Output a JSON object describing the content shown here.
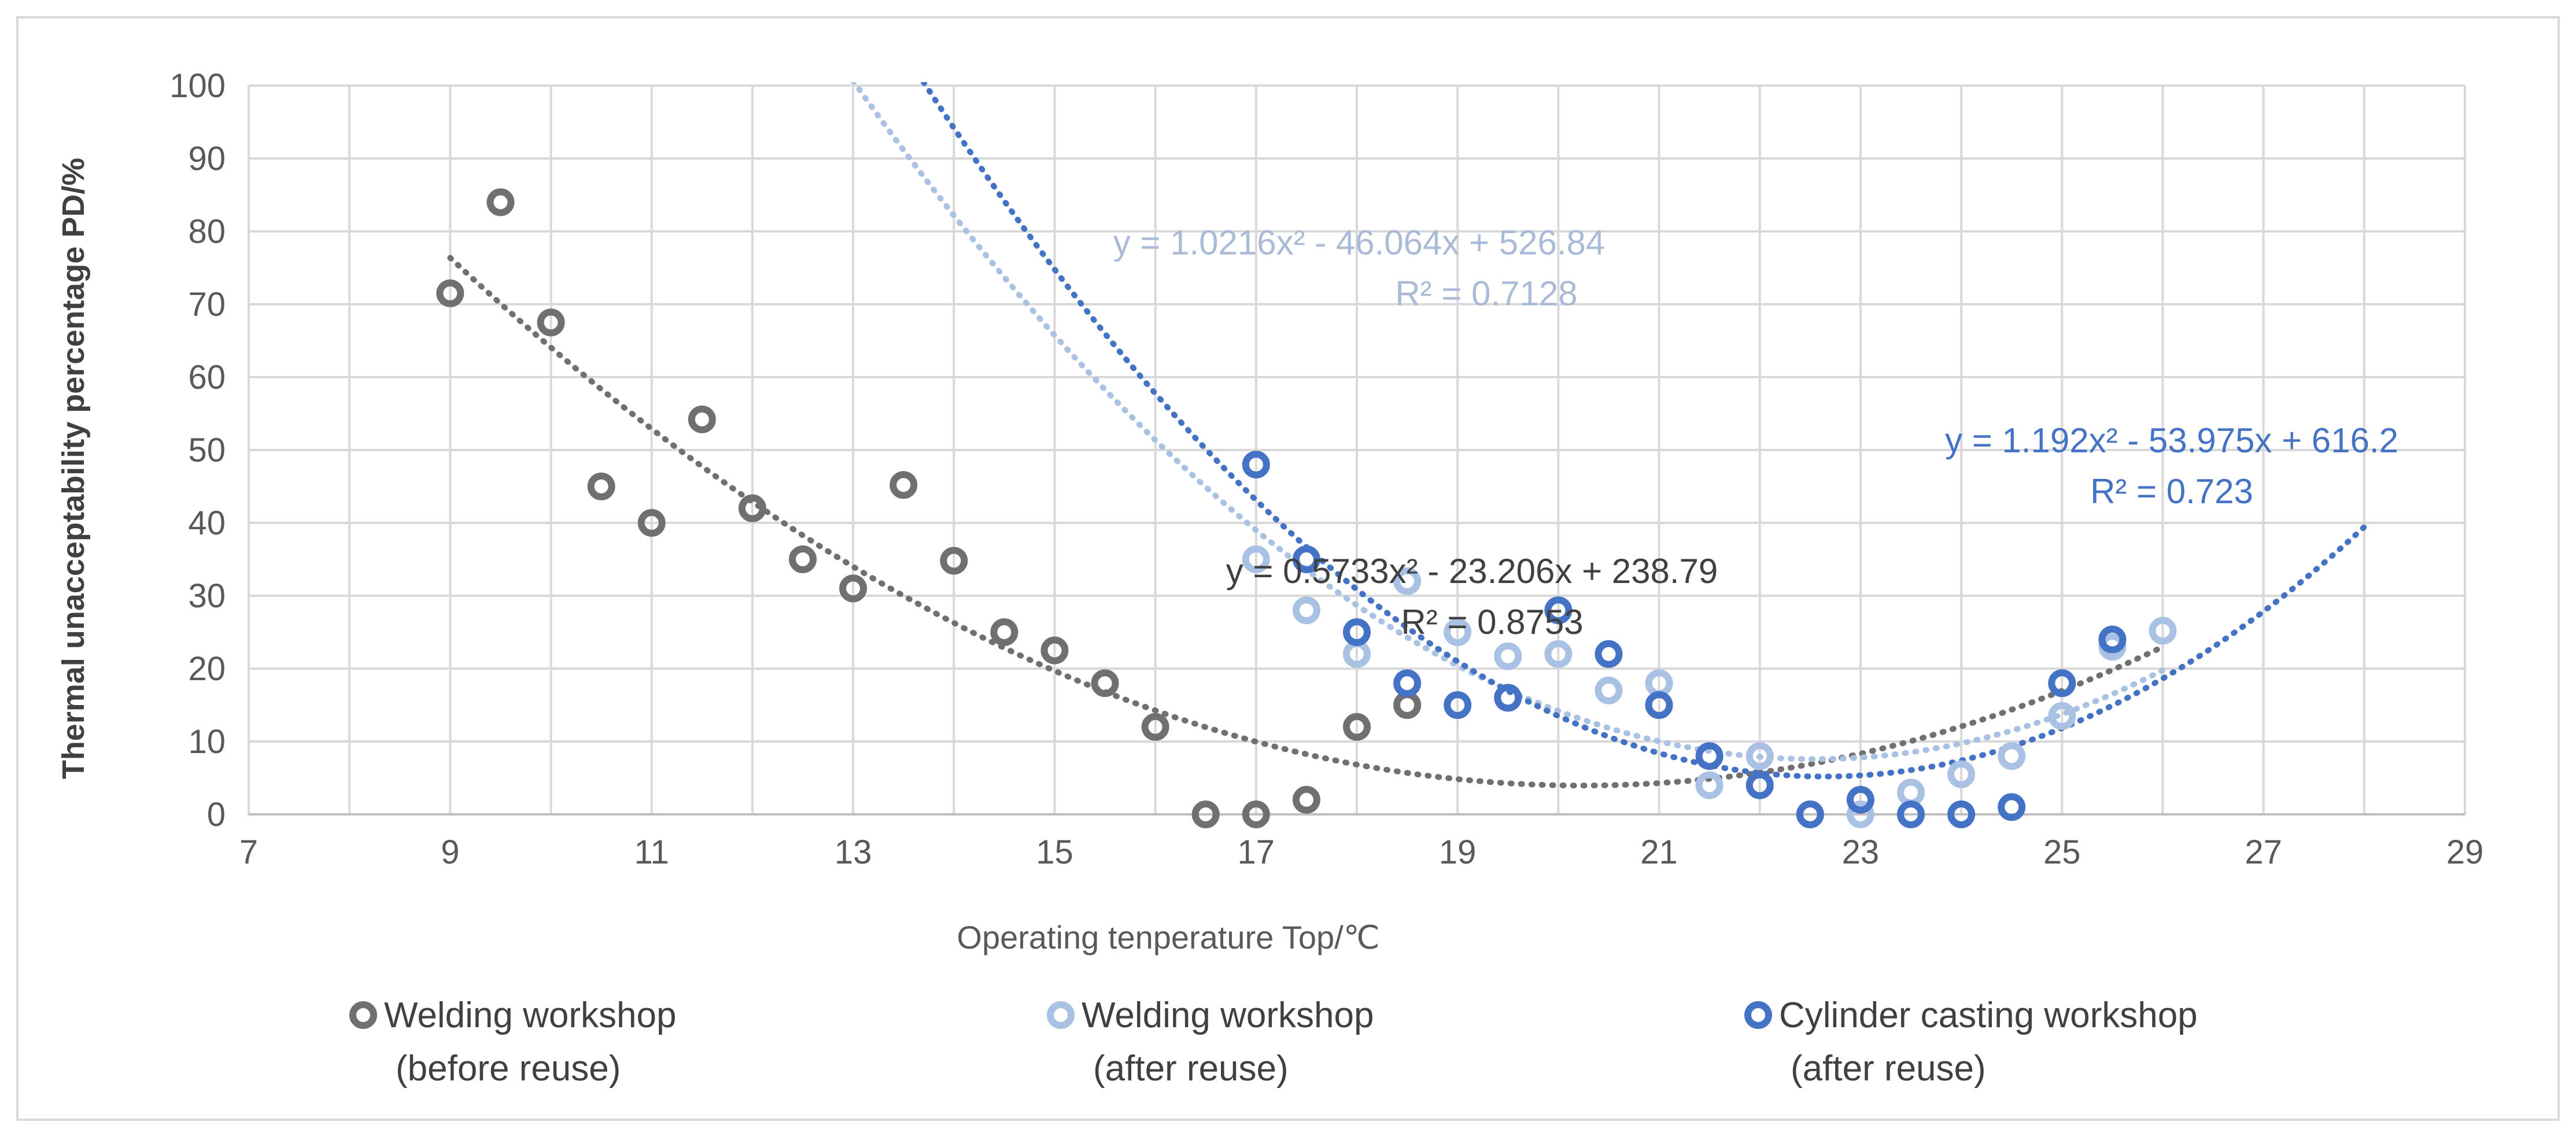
{
  "chart_data": {
    "type": "scatter",
    "title": "",
    "xlabel": "Operating tenperature Top/℃",
    "ylabel": "Thermal unacceptability  percentage PD/%",
    "xlim": [
      7,
      29
    ],
    "ylim": [
      0,
      100
    ],
    "x_ticks": [
      "7",
      "9",
      "11",
      "13",
      "15",
      "17",
      "19",
      "21",
      "23",
      "25",
      "27",
      "29"
    ],
    "y_ticks": [
      "0",
      "10",
      "20",
      "30",
      "40",
      "50",
      "60",
      "70",
      "80",
      "90",
      "100"
    ],
    "grid": true,
    "legend_position": "bottom",
    "series": [
      {
        "name": "Welding workshop (before reuse)",
        "legend_line1": "Welding workshop",
        "legend_line2": "(before reuse)",
        "color": "#707070",
        "points": [
          [
            9,
            71.5
          ],
          [
            9.5,
            84
          ],
          [
            10,
            67.5
          ],
          [
            10.5,
            45
          ],
          [
            11,
            40
          ],
          [
            11.5,
            54.2
          ],
          [
            12,
            42
          ],
          [
            12.5,
            35
          ],
          [
            13,
            31
          ],
          [
            13.5,
            45.2
          ],
          [
            14,
            34.8
          ],
          [
            14.5,
            25
          ],
          [
            15,
            22.5
          ],
          [
            15.5,
            18
          ],
          [
            16,
            12
          ],
          [
            16.5,
            0
          ],
          [
            17,
            0
          ],
          [
            17.5,
            2
          ],
          [
            18,
            12
          ],
          [
            18.5,
            15
          ]
        ],
        "trend": {
          "a": 0.5733,
          "b": -23.206,
          "c": 238.79,
          "x_from": 9,
          "x_to": 26,
          "equation": "y = 0.5733x² - 23.206x + 238.79",
          "r2": "R² = 0.8753"
        }
      },
      {
        "name": "Welding workshop (after reuse)",
        "legend_line1": "Welding workshop",
        "legend_line2": "(after reuse)",
        "color": "#a9c2e4",
        "points": [
          [
            17,
            35
          ],
          [
            17.5,
            28
          ],
          [
            18,
            22
          ],
          [
            18.5,
            32
          ],
          [
            19,
            25
          ],
          [
            19.5,
            21.7
          ],
          [
            20,
            22
          ],
          [
            20.5,
            17
          ],
          [
            21,
            18
          ],
          [
            21.5,
            4
          ],
          [
            22,
            8
          ],
          [
            22.5,
            0
          ],
          [
            23,
            0
          ],
          [
            23.5,
            3
          ],
          [
            24,
            5.5
          ],
          [
            24.5,
            8
          ],
          [
            25,
            13.5
          ],
          [
            25.5,
            23
          ],
          [
            26,
            25.2
          ]
        ],
        "trend": {
          "a": 1.0216,
          "b": -46.064,
          "c": 526.84,
          "x_from": 13,
          "x_to": 26,
          "equation": "y = 1.0216x² - 46.064x + 526.84",
          "r2": "R² = 0.7128"
        }
      },
      {
        "name": "Cylinder casting workshop (after reuse)",
        "legend_line1": "Cylinder casting workshop",
        "legend_line2": "(after reuse)",
        "color": "#4472c4",
        "points": [
          [
            17,
            48
          ],
          [
            17.5,
            35
          ],
          [
            18,
            25
          ],
          [
            18.5,
            18
          ],
          [
            19,
            15
          ],
          [
            19.5,
            16
          ],
          [
            20,
            28
          ],
          [
            20.5,
            22
          ],
          [
            21,
            15
          ],
          [
            21.5,
            8
          ],
          [
            22,
            4
          ],
          [
            22.5,
            0
          ],
          [
            23,
            2
          ],
          [
            23.5,
            0
          ],
          [
            24,
            0
          ],
          [
            24.5,
            1
          ],
          [
            25,
            18
          ],
          [
            25.5,
            24
          ]
        ],
        "trend": {
          "a": 1.192,
          "b": -53.975,
          "c": 616.2,
          "x_from": 13.7,
          "x_to": 28,
          "equation": "y = 1.192x² - 53.975x + 616.2",
          "r2": "R² = 0.723"
        }
      }
    ]
  }
}
